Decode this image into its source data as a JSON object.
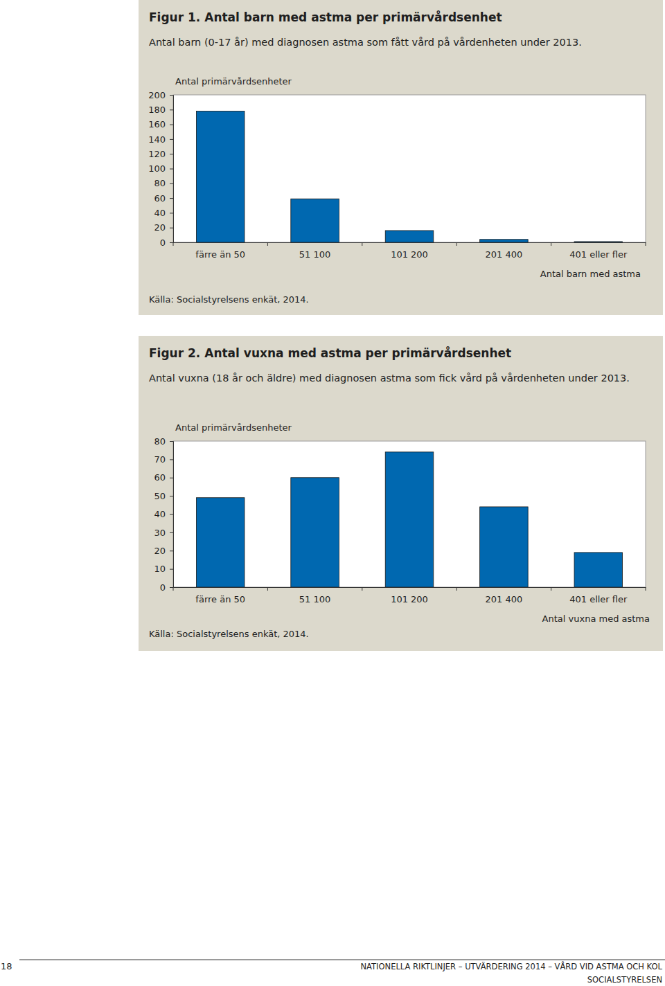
{
  "chart_data": [
    {
      "type": "bar",
      "title": "Figur 1. Antal barn med astma per primärvårdsenhet",
      "subtitle": "Antal barn (0-17 år) med diagnosen astma som fått vård på vårdenheten under 2013.",
      "y_label": "Antal primärvårdsenheter",
      "x_label": "Antal barn med astma",
      "source": "Källa: Socialstyrelsens enkät, 2014.",
      "categories": [
        "färre än 50",
        "51 100",
        "101 200",
        "201 400",
        "401 eller fler"
      ],
      "values": [
        178,
        59,
        16,
        4,
        1
      ],
      "color": "#0068b0",
      "ylim": [
        0,
        200
      ],
      "yticks": [
        0,
        20,
        40,
        60,
        80,
        100,
        120,
        140,
        160,
        180,
        200
      ],
      "grid": false
    },
    {
      "type": "bar",
      "title": "Figur 2. Antal vuxna med astma per primärvårdsenhet",
      "subtitle": "Antal vuxna (18 år och äldre) med diagnosen astma som fick vård på vårdenheten under 2013.",
      "y_label": "Antal primärvårdsenheter",
      "x_label": "Antal vuxna med astma",
      "source": "Källa: Socialstyrelsens enkät, 2014.",
      "categories": [
        "färre än 50",
        "51 100",
        "101 200",
        "201 400",
        "401 eller fler"
      ],
      "values": [
        49,
        60,
        74,
        44,
        19
      ],
      "color": "#0068b0",
      "ylim": [
        0,
        80
      ],
      "yticks": [
        0,
        10,
        20,
        30,
        40,
        50,
        60,
        70,
        80
      ],
      "grid": false
    }
  ],
  "page": {
    "page_number": 18,
    "footer": "NATIONELLA RIKTLINJER – UTVÄRDERING 2014 – VÅRD VID ASTMA OCH KOL",
    "publisher": "SOCIALSTYRELSEN"
  }
}
